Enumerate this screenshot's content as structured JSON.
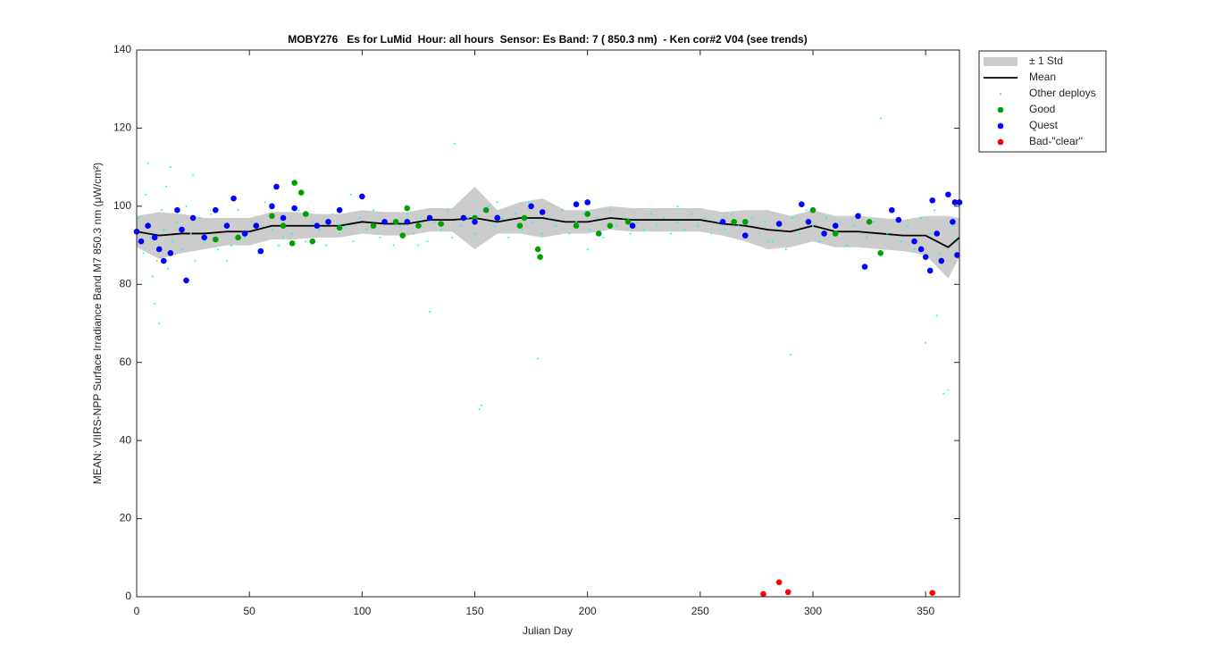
{
  "chart_data": {
    "type": "scatter",
    "title": "MOBY276   Es for LuMid  Hour: all hours  Sensor: Es Band: 7 ( 850.3 nm)  - Ken cor#2 V04 (see trends)",
    "xlabel": "Julian Day",
    "ylabel": "MEAN: VIIRS-NPP Surface Irradiance Band M7 850.3 nm (μW/cm²)",
    "xlim": [
      0,
      365
    ],
    "ylim": [
      0,
      140
    ],
    "xticks": [
      0,
      50,
      100,
      150,
      200,
      250,
      300,
      350
    ],
    "yticks": [
      0,
      20,
      40,
      60,
      80,
      100,
      120,
      140
    ],
    "legend": "outside-top-right",
    "series": [
      {
        "name": "± 1 Std",
        "style": "band",
        "color": "#cccccc",
        "x": [
          0,
          10,
          20,
          30,
          40,
          50,
          60,
          70,
          80,
          90,
          100,
          110,
          120,
          130,
          140,
          150,
          160,
          170,
          180,
          190,
          200,
          210,
          220,
          230,
          240,
          250,
          260,
          270,
          280,
          290,
          300,
          310,
          320,
          330,
          340,
          350,
          360,
          365
        ],
        "upper": [
          97.5,
          98.5,
          98,
          97,
          97,
          97,
          98.5,
          98.5,
          98,
          98,
          99,
          98.5,
          98.5,
          99.5,
          99.5,
          105,
          99,
          101,
          102,
          99,
          99,
          100,
          99.5,
          99.5,
          99.5,
          99.5,
          98.5,
          99,
          99,
          97.5,
          99,
          97.5,
          97.5,
          97,
          96.5,
          97.5,
          97.5,
          97
        ],
        "lower": [
          89.5,
          86.5,
          88,
          89,
          90,
          90,
          91.5,
          91.5,
          92,
          92,
          93,
          92.5,
          92.5,
          93.5,
          93.5,
          89,
          93,
          93,
          92,
          93,
          93,
          94,
          93.5,
          93.5,
          93.5,
          93.5,
          92.5,
          91,
          89,
          89.5,
          91,
          89.5,
          89.5,
          89,
          88.5,
          87.5,
          81.5,
          87
        ]
      },
      {
        "name": "Mean",
        "style": "line",
        "color": "#000000",
        "x": [
          0,
          10,
          20,
          30,
          40,
          50,
          60,
          70,
          80,
          90,
          100,
          110,
          120,
          130,
          140,
          150,
          160,
          170,
          180,
          190,
          200,
          210,
          220,
          230,
          240,
          250,
          260,
          270,
          280,
          290,
          300,
          310,
          320,
          330,
          340,
          350,
          360,
          365
        ],
        "y": [
          93.5,
          92.5,
          93,
          93,
          93.5,
          93.5,
          95,
          95,
          95,
          95,
          96,
          95.5,
          95.5,
          96.5,
          96.5,
          97,
          96,
          97,
          97,
          96,
          96,
          97,
          96.5,
          96.5,
          96.5,
          96.5,
          95.5,
          95,
          94,
          93.5,
          95,
          93.5,
          93.5,
          93,
          92.5,
          92.5,
          89.5,
          92
        ]
      },
      {
        "name": "Other deploys",
        "style": "dots",
        "color": "#00ffff",
        "x": [
          1,
          3,
          4,
          5,
          6,
          8,
          9,
          10,
          11,
          12,
          14,
          15,
          16,
          18,
          20,
          22,
          24,
          26,
          28,
          30,
          33,
          36,
          39,
          42,
          45,
          48,
          51,
          54,
          57,
          60,
          63,
          66,
          69,
          72,
          75,
          78,
          81,
          84,
          87,
          90,
          93,
          96,
          99,
          102,
          105,
          108,
          111,
          114,
          117,
          120,
          123,
          126,
          129,
          130,
          132,
          135,
          138,
          140,
          141,
          144,
          147,
          150,
          152,
          153,
          156,
          159,
          162,
          165,
          168,
          171,
          174,
          176,
          178,
          180,
          183,
          186,
          189,
          192,
          195,
          198,
          201,
          204,
          207,
          210,
          213,
          216,
          219,
          222,
          225,
          228,
          231,
          234,
          237,
          240,
          243,
          246,
          249,
          252,
          255,
          258,
          261,
          264,
          267,
          270,
          273,
          276,
          279,
          282,
          285,
          288,
          290,
          291,
          294,
          297,
          300,
          303,
          306,
          309,
          312,
          315,
          318,
          321,
          324,
          327,
          330,
          333,
          336,
          339,
          342,
          345,
          348,
          350,
          352,
          354,
          356,
          358,
          360,
          362,
          364,
          7,
          13,
          25,
          40,
          65,
          95,
          125,
          160,
          200,
          240,
          280,
          320,
          355
        ],
        "y": [
          97,
          88,
          103,
          111,
          92,
          75,
          86,
          70,
          99,
          94,
          84,
          110,
          91,
          96,
          89,
          100,
          93,
          86,
          97,
          91,
          98,
          89,
          95,
          90,
          99,
          92,
          96,
          88,
          101,
          94,
          90,
          97,
          93,
          99,
          91,
          96,
          94,
          90,
          98,
          93,
          95,
          91,
          97,
          94,
          99,
          92,
          96,
          90,
          95,
          98,
          93,
          97,
          91,
          73,
          96,
          94,
          99,
          92,
          116,
          95,
          97,
          93,
          48,
          49,
          100,
          95,
          97,
          92,
          98,
          94,
          101,
          96,
          61,
          93,
          97,
          95,
          99,
          93,
          96,
          98,
          94,
          97,
          92,
          99,
          95,
          97,
          93,
          96,
          94,
          98,
          95,
          97,
          93,
          96,
          94,
          98,
          95,
          97,
          93,
          96,
          94,
          98,
          95,
          92,
          97,
          93,
          96,
          91,
          95,
          89,
          62,
          97,
          93,
          99,
          95,
          91,
          97,
          93,
          96,
          90,
          95,
          98,
          92,
          96,
          122.5,
          93,
          99,
          91,
          95,
          89,
          97,
          65,
          93,
          99,
          88,
          52,
          53,
          95,
          91,
          82,
          105,
          108,
          86,
          92,
          103,
          90,
          101,
          89,
          100,
          91,
          98,
          72
        ]
      },
      {
        "name": "Good",
        "style": "markers",
        "color": "#00a000",
        "x": [
          35,
          45,
          60,
          65,
          69,
          70,
          73,
          75,
          78,
          90,
          105,
          115,
          118,
          120,
          125,
          135,
          150,
          155,
          160,
          170,
          172,
          178,
          179,
          195,
          200,
          205,
          210,
          218,
          265,
          270,
          300,
          310,
          325,
          330
        ],
        "y": [
          91.5,
          92,
          97.5,
          95,
          90.5,
          106,
          103.5,
          98,
          91,
          94.5,
          95,
          96,
          92.5,
          99.5,
          95,
          95.5,
          97,
          99,
          97,
          95,
          97,
          89,
          87,
          95,
          98,
          93,
          95,
          96,
          96,
          96,
          99,
          93,
          96,
          88
        ]
      },
      {
        "name": "Quest",
        "style": "markers",
        "color": "#0000ff",
        "x": [
          0,
          2,
          5,
          8,
          10,
          12,
          15,
          18,
          20,
          22,
          25,
          30,
          35,
          40,
          43,
          48,
          53,
          55,
          60,
          62,
          65,
          70,
          80,
          85,
          90,
          100,
          110,
          120,
          130,
          145,
          150,
          160,
          175,
          180,
          195,
          200,
          220,
          260,
          270,
          285,
          295,
          298,
          305,
          310,
          320,
          323,
          335,
          338,
          345,
          348,
          350,
          352,
          353,
          355,
          357,
          360,
          362,
          363,
          365,
          364
        ],
        "y": [
          93.5,
          91,
          95,
          92,
          89,
          86,
          88,
          99,
          94,
          81,
          97,
          92,
          99,
          95,
          102,
          93,
          95,
          88.5,
          100,
          105,
          97,
          99.5,
          95,
          96,
          99,
          102.5,
          96,
          96,
          97,
          97,
          96,
          97,
          100,
          98.5,
          100.5,
          101,
          95,
          96,
          92.5,
          95.5,
          100.5,
          96,
          93,
          95,
          97.5,
          84.5,
          99,
          96.5,
          91,
          89,
          87,
          83.5,
          101.5,
          93,
          86,
          103,
          96,
          101,
          101,
          87.5
        ]
      },
      {
        "name": "Bad-\"clear\"",
        "style": "markers",
        "color": "#ff0000",
        "x": [
          278,
          285,
          289,
          353
        ],
        "y": [
          0.7,
          3.7,
          1.2,
          1
        ]
      }
    ]
  }
}
